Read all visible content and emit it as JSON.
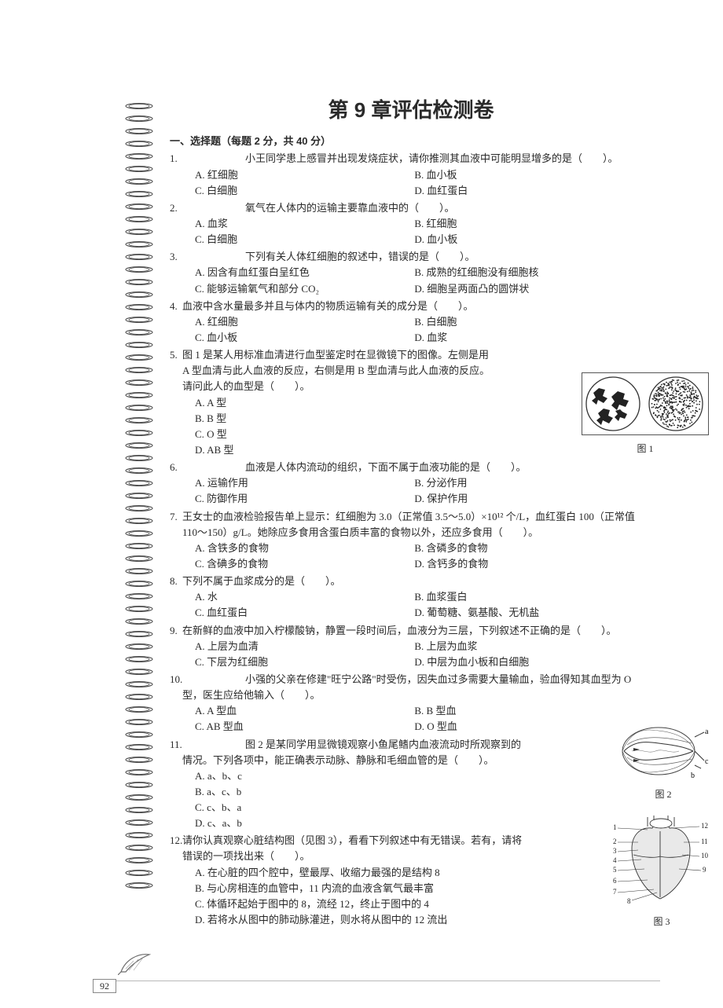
{
  "colors": {
    "text": "#2a2a2a",
    "ring": "#4a4a4a",
    "line": "#b9b9b9"
  },
  "title": "第 9 章评估检测卷",
  "section1": "一、选择题（每题 2 分，共 40 分）",
  "page_number": "92",
  "figs": {
    "f1": "图 1",
    "f2": "图 2",
    "f3": "图 3"
  },
  "q": [
    {
      "n": "1.",
      "tag": true,
      "stem": "小王同学患上感冒并出现发烧症状，请你推测其血液中可能明显增多的是（　　）。",
      "opts": [
        [
          "A. 红细胞",
          "B. 血小板"
        ],
        [
          "C. 白细胞",
          "D. 血红蛋白"
        ]
      ]
    },
    {
      "n": "2.",
      "tag": true,
      "stem": "氧气在人体内的运输主要靠血液中的（　　）。",
      "opts": [
        [
          "A. 血浆",
          "B. 红细胞"
        ],
        [
          "C. 白细胞",
          "D. 血小板"
        ]
      ]
    },
    {
      "n": "3.",
      "tag": true,
      "stem": "下列有关人体红细胞的叙述中，错误的是（　　）。",
      "opts": [
        [
          "A. 因含有血红蛋白呈红色",
          "B. 成熟的红细胞没有细胞核"
        ],
        [
          "C. 能够运输氧气和部分 CO₂",
          "D. 细胞呈两面凸的圆饼状"
        ]
      ]
    },
    {
      "n": "4.",
      "stem": "血液中含水量最多并且与体内的物质运输有关的成分是（　　）。",
      "opts": [
        [
          "A. 红细胞",
          "B. 白细胞"
        ],
        [
          "C. 血小板",
          "D. 血浆"
        ]
      ]
    },
    {
      "n": "5.",
      "stem": "图 1 是某人用标准血清进行血型鉴定时在显微镜下的图像。左侧是用 A 型血清与此人血液的反应，右侧是用 B 型血清与此人血液的反应。请问此人的血型是（　　）。",
      "opts_single": [
        "A. A 型",
        "B. B 型",
        "C. O 型",
        "D. AB 型"
      ]
    },
    {
      "n": "6.",
      "tag": true,
      "stem": "血液是人体内流动的组织，下面不属于血液功能的是（　　）。",
      "opts": [
        [
          "A. 运输作用",
          "B. 分泌作用"
        ],
        [
          "C. 防御作用",
          "D. 保护作用"
        ]
      ]
    },
    {
      "n": "7.",
      "stem": "王女士的血液检验报告单上显示：红细胞为 3.0（正常值 3.5～5.0）×10¹² 个/L，血红蛋白 100（正常值 110～150）g/L。她除应多食用含蛋白质丰富的食物以外，还应多食用（　　）。",
      "opts": [
        [
          "A. 含铁多的食物",
          "B. 含磷多的食物"
        ],
        [
          "C. 含碘多的食物",
          "D. 含钙多的食物"
        ]
      ]
    },
    {
      "n": "8.",
      "stem": "下列不属于血浆成分的是（　　）。",
      "opts": [
        [
          "A. 水",
          "B. 血浆蛋白"
        ],
        [
          "C. 血红蛋白",
          "D. 葡萄糖、氨基酸、无机盐"
        ]
      ]
    },
    {
      "n": "9.",
      "stem": "在新鲜的血液中加入柠檬酸钠，静置一段时间后，血液分为三层，下列叙述不正确的是（　　）。",
      "opts": [
        [
          "A. 上层为血清",
          "B. 上层为血浆"
        ],
        [
          "C. 下层为红细胞",
          "D. 中层为血小板和白细胞"
        ]
      ]
    },
    {
      "n": "10.",
      "tag": true,
      "stem": "小强的父亲在修建\"旺宁公路\"时受伤，因失血过多需要大量输血，验血得知其血型为 O 型，医生应给他输入（　　）。",
      "opts": [
        [
          "A. A 型血",
          "B. B 型血"
        ],
        [
          "C. AB 型血",
          "D. O 型血"
        ]
      ]
    },
    {
      "n": "11.",
      "tag": true,
      "stem": "图 2 是某同学用显微镜观察小鱼尾鳍内血液流动时所观察到的情况。下列各项中，能正确表示动脉、静脉和毛细血管的是（　　）。",
      "opts_single": [
        "A. a、b、c",
        "B. a、c、b",
        "C. c、b、a",
        "D. c、a、b"
      ]
    },
    {
      "n": "12.",
      "stem": "请你认真观察心脏结构图（见图 3），看看下列叙述中有无错误。若有，请将错误的一项找出来（　　）。",
      "opts_single": [
        "A. 在心脏的四个腔中，壁最厚、收缩力最强的是结构 8",
        "B. 与心房相连的血管中，11 内流的血液含氧气最丰富",
        "C. 体循环起始于图中的 8，流经 12，终止于图中的 4",
        "D. 若将水从图中的肺动脉灌进，则水将从图中的 12 流出"
      ]
    }
  ]
}
